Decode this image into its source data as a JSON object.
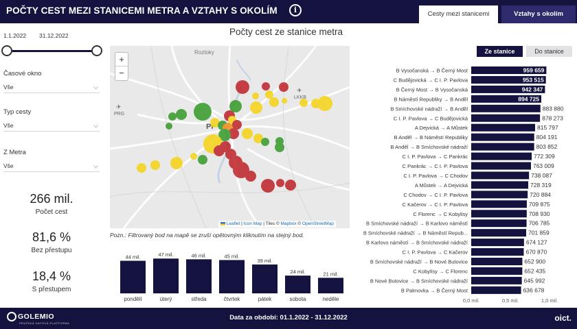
{
  "header": {
    "title": "POČTY CEST MEZI STANICEMI METRA A VZTAHY S OKOLÍM",
    "info_glyph": "i",
    "tabs": [
      {
        "label": "Cesty mezi stanicemi",
        "active": true
      },
      {
        "label": "Vztahy s okolím",
        "active": false
      }
    ]
  },
  "filters": {
    "date_from": "1.1.2022",
    "date_to": "31.12.2022",
    "time_window": {
      "label": "Časové okno",
      "value": "Vše"
    },
    "trip_type": {
      "label": "Typ cesty",
      "value": "Vše"
    },
    "from_metro": {
      "label": "Z Metra",
      "value": "Vše"
    }
  },
  "kpis": [
    {
      "value": "266 mil.",
      "label": "Počet cest"
    },
    {
      "value": "81,6 %",
      "label": "Bez přestupu"
    },
    {
      "value": "18,4 %",
      "label": "S přestupem"
    }
  ],
  "map": {
    "title": "Počty cest ze stanice metra",
    "zoom_in": "+",
    "zoom_out": "−",
    "place_labels": [
      "Roztoky",
      "PRG",
      "LKKB",
      "Pr"
    ],
    "attribution": {
      "leaflet": "Leaflet",
      "sep1": " | ",
      "icon_map": "Icon Map",
      "tiles": " | Tiles © ",
      "mapbox": "Mapbox",
      "osm_pre": " © ",
      "osm": "OpenStreetMap"
    },
    "note": "Pozn.: Filtrovaný bod na mapě se zruší opětovným kliknutím na stejný bod.",
    "colors": {
      "green": "#3a9b2d",
      "yellow": "#f5d31b",
      "orange": "#ef8e1e",
      "red": "#c0282d"
    }
  },
  "direction_toggle": {
    "active": "Ze stanice",
    "inactive": "Do stanice"
  },
  "chart_data": [
    {
      "type": "bar",
      "categories": [
        "pondělí",
        "úterý",
        "středa",
        "čtvrtek",
        "pátek",
        "sobota",
        "neděle"
      ],
      "values": [
        44,
        47,
        46,
        45,
        39,
        24,
        21
      ],
      "data_labels": [
        "44 mil.",
        "47 mil.",
        "46 mil.",
        "45 mil.",
        "39 mil.",
        "24 mil.",
        "21 mil."
      ],
      "ylim": [
        0,
        50
      ],
      "color": "#14133f"
    },
    {
      "type": "bar",
      "orientation": "horizontal",
      "categories": [
        "B Vysočanská → B Černý Most",
        "C Budějovická → C I. P. Pavlova",
        "B Černý Most → B Vysočanská",
        "B Náměstí Republiky → B Anděl",
        "B Smíchovské nádraží → B Anděl",
        "C I. P. Pavlova → C Budějovická",
        "A Dejvická → A Můstek",
        "B Anděl → B Náměstí Republiky",
        "B Anděl → B Smíchovské nádraží",
        "C I. P. Pavlova → C Pankrác",
        "C Pankrác → C I. P. Pavlova",
        "C I. P. Pavlova → C Chodov",
        "A Můstek → A Dejvická",
        "C Chodov → C I. P. Pavlova",
        "C Kačerov → C I. P. Pavlova",
        "C Florenc → C Kobylisy",
        "B Smíchovské nádraží → B Karlovo náměstí",
        "B Smíchovské nádraží → B Náměstí Repub...",
        "B Karlovo náměstí → B Smíchovské nádraží",
        "C I. P. Pavlova → C Kačerov",
        "B Smíchovské nádraží → B Nové Butovice",
        "C Kobylisy → C Florenc",
        "B Nové Butovice → B Smíchovské nádraží",
        "B Palmovka → B Černý Most"
      ],
      "values": [
        959659,
        953515,
        942347,
        894725,
        883880,
        878273,
        815797,
        804191,
        803852,
        772309,
        763009,
        738087,
        728319,
        720884,
        709875,
        708930,
        706785,
        701859,
        674127,
        670870,
        652900,
        652435,
        645992,
        636678
      ],
      "data_labels": [
        "959 659",
        "953 515",
        "942 347",
        "894 725",
        "883 880",
        "878 273",
        "815 797",
        "804 191",
        "803 852",
        "772 309",
        "763 009",
        "738 087",
        "728 319",
        "720 884",
        "709 875",
        "708 930",
        "706 785",
        "701 859",
        "674 127",
        "670 870",
        "652 900",
        "652 435",
        "645 992",
        "636 678"
      ],
      "x_ticks": [
        "0,0 mil.",
        "0,5 mil.",
        "1,0 mil."
      ],
      "xlim": [
        0,
        1000000
      ],
      "color": "#14133f"
    }
  ],
  "footer": {
    "period": "Data za období: 01.1.2022 - 31.12.2022",
    "logo_left": "GOLEMIO",
    "logo_left_sub": "PRAŽSKÁ DATOVÁ PLATFORMA",
    "logo_right": "oict."
  }
}
